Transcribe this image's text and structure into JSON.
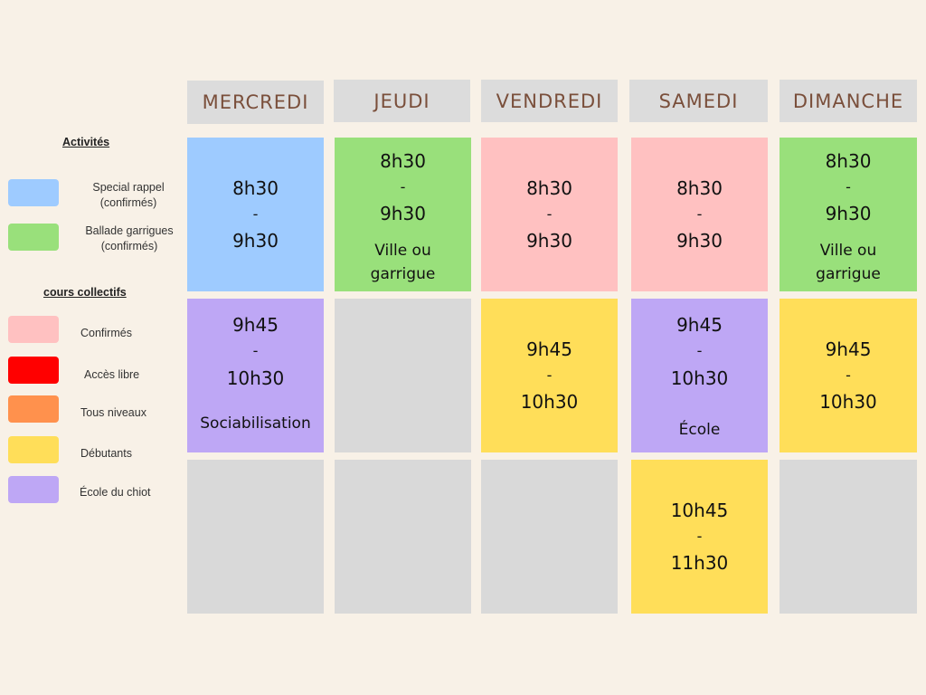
{
  "legend": {
    "activites_heading": "Activités",
    "cours_heading": "cours collectifs",
    "items": [
      {
        "label_lines": [
          "Special rappel",
          "(confirmés)"
        ],
        "color": "#9ecbff"
      },
      {
        "label_lines": [
          "Ballade garrigues",
          "(confirmés)"
        ],
        "color": "#99e07b"
      },
      {
        "label_lines": [
          "Confirmés"
        ],
        "color": "#ffc1c1"
      },
      {
        "label_lines": [
          "Accès libre"
        ],
        "color": "#ff0000"
      },
      {
        "label_lines": [
          "Tous niveaux"
        ],
        "color": "#ff914d"
      },
      {
        "label_lines": [
          "Débutants"
        ],
        "color": "#ffde59"
      },
      {
        "label_lines": [
          "École du chiot"
        ],
        "color": "#bea7f5"
      }
    ]
  },
  "days": [
    "MERCREDI",
    "JEUDI",
    "VENDREDI",
    "SAMEDI",
    "DIMANCHE"
  ],
  "empty_color": "#d9d9d9",
  "cells": [
    {
      "day": "MERCREDI",
      "row": 1,
      "color": "#9ecbff",
      "lines": [
        "8h30",
        "-",
        "9h30"
      ]
    },
    {
      "day": "JEUDI",
      "row": 1,
      "color": "#99e07b",
      "lines": [
        "8h30",
        "-",
        "9h30",
        "Ville ou",
        "garrigue"
      ]
    },
    {
      "day": "VENDREDI",
      "row": 1,
      "color": "#ffc1c1",
      "lines": [
        "8h30",
        "-",
        "9h30"
      ]
    },
    {
      "day": "SAMEDI",
      "row": 1,
      "color": "#ffc1c1",
      "lines": [
        "8h30",
        "-",
        "9h30"
      ]
    },
    {
      "day": "DIMANCHE",
      "row": 1,
      "color": "#99e07b",
      "lines": [
        "8h30",
        "-",
        "9h30",
        "Ville ou",
        "garrigue"
      ]
    },
    {
      "day": "MERCREDI",
      "row": 2,
      "color": "#bea7f5",
      "lines": [
        "9h45",
        "-",
        "10h30",
        "Sociabilisation"
      ]
    },
    {
      "day": "JEUDI",
      "row": 2,
      "color": "#d9d9d9",
      "lines": []
    },
    {
      "day": "VENDREDI",
      "row": 2,
      "color": "#ffde59",
      "lines": [
        "9h45",
        "-",
        "10h30"
      ]
    },
    {
      "day": "SAMEDI",
      "row": 2,
      "color": "#bea7f5",
      "lines": [
        "9h45",
        "-",
        "10h30",
        "École"
      ]
    },
    {
      "day": "DIMANCHE",
      "row": 2,
      "color": "#ffde59",
      "lines": [
        "9h45",
        "-",
        "10h30"
      ]
    },
    {
      "day": "MERCREDI",
      "row": 3,
      "color": "#d9d9d9",
      "lines": []
    },
    {
      "day": "JEUDI",
      "row": 3,
      "color": "#d9d9d9",
      "lines": []
    },
    {
      "day": "VENDREDI",
      "row": 3,
      "color": "#d9d9d9",
      "lines": []
    },
    {
      "day": "SAMEDI",
      "row": 3,
      "color": "#ffde59",
      "lines": [
        "10h45",
        "-",
        "11h30"
      ]
    },
    {
      "day": "DIMANCHE",
      "row": 3,
      "color": "#d9d9d9",
      "lines": []
    }
  ]
}
